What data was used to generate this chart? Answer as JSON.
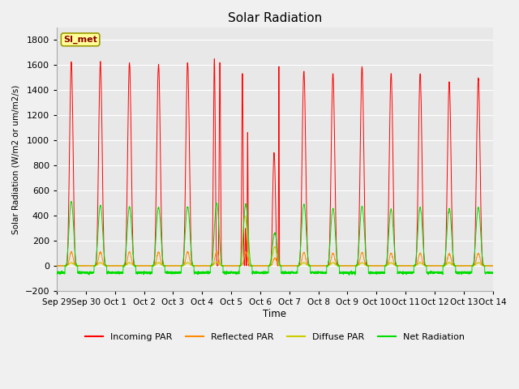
{
  "title": "Solar Radiation",
  "ylabel": "Solar Radiation (W/m2 or um/m2/s)",
  "xlabel": "Time",
  "ylim": [
    -200,
    1900
  ],
  "yticks": [
    -200,
    0,
    200,
    400,
    600,
    800,
    1000,
    1200,
    1400,
    1600,
    1800
  ],
  "fig_bg_color": "#f0f0f0",
  "plot_bg_color": "#e8e8e8",
  "grid_color": "#ffffff",
  "colors": {
    "incoming": "#ff0000",
    "reflected": "#ff8c00",
    "diffuse": "#cccc00",
    "net": "#00dd00"
  },
  "legend_labels": [
    "Incoming PAR",
    "Reflected PAR",
    "Diffuse PAR",
    "Net Radiation"
  ],
  "station_label": "SI_met",
  "x_tick_labels": [
    "Sep 29",
    "Sep 30",
    "Oct 1",
    "Oct 2",
    "Oct 3",
    "Oct 4",
    "Oct 5",
    "Oct 6",
    "Oct 7",
    "Oct 8",
    "Oct 9",
    "Oct 10",
    "Oct 11",
    "Oct 12",
    "Oct 13",
    "Oct 14"
  ],
  "n_days": 15,
  "points_per_day": 288,
  "day_peaks_incoming": [
    1620,
    1620,
    1615,
    1605,
    1620,
    1650,
    1540,
    900,
    1550,
    1530,
    1580,
    1530,
    1530,
    1465,
    1490
  ],
  "day_peaks_net": [
    510,
    480,
    470,
    465,
    470,
    500,
    490,
    260,
    490,
    455,
    475,
    450,
    465,
    455,
    465
  ],
  "day_peaks_reflected": [
    110,
    110,
    110,
    108,
    110,
    115,
    110,
    60,
    105,
    100,
    105,
    100,
    100,
    95,
    100
  ],
  "day_peaks_diffuse": [
    25,
    25,
    25,
    25,
    25,
    30,
    400,
    150,
    25,
    25,
    25,
    25,
    25,
    25,
    25
  ],
  "night_net": -55,
  "figsize": [
    6.4,
    4.8
  ],
  "dpi": 100
}
